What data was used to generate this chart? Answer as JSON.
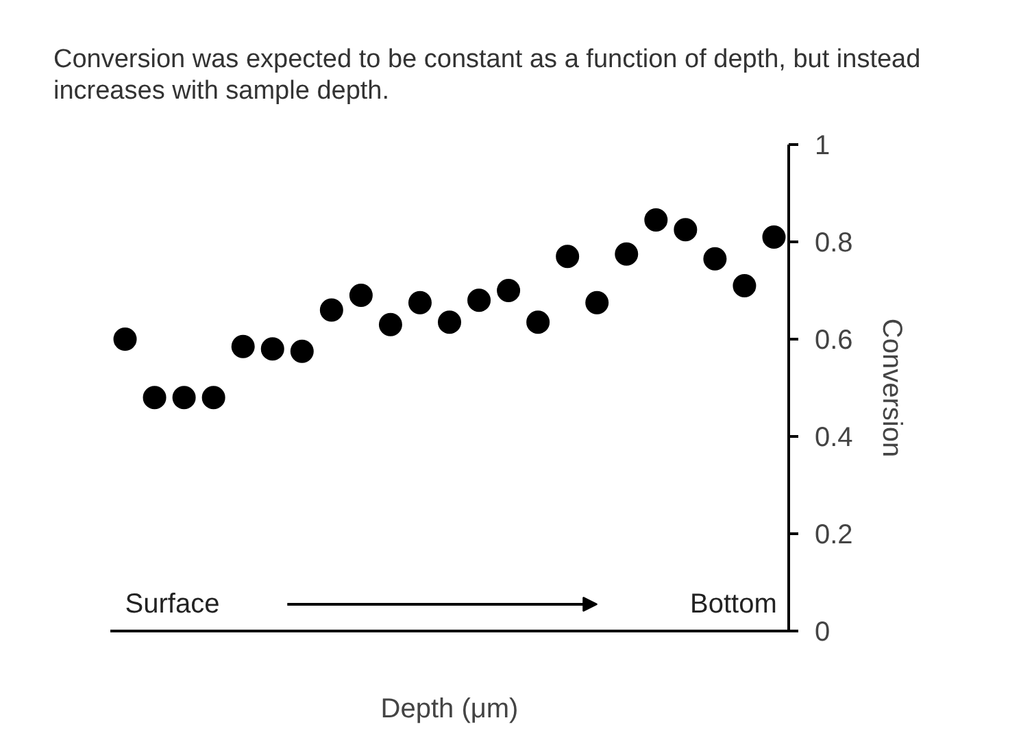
{
  "chart_data": {
    "type": "scatter",
    "title": "Conversion was expected to be constant as a function of depth, but instead increases with sample depth.",
    "xlabel": "Depth (μm)",
    "ylabel": "Conversion",
    "categories": [
      null,
      null,
      null,
      null,
      null,
      null,
      null,
      null,
      null,
      null,
      null,
      null,
      null,
      null,
      null,
      null,
      null,
      null,
      null,
      null,
      null,
      null,
      null
    ],
    "series": [
      {
        "color": "#000000",
        "values": [
          0.6,
          0.48,
          0.48,
          0.48,
          0.585,
          0.58,
          0.575,
          0.66,
          0.69,
          0.63,
          0.675,
          0.635,
          0.68,
          0.7,
          0.635,
          0.77,
          0.675,
          0.775,
          0.845,
          0.825,
          0.765,
          0.71,
          0.81
        ]
      }
    ],
    "ylim": [
      0,
      1
    ],
    "yticks": [
      0,
      0.2,
      0.4,
      0.6,
      0.8,
      1
    ],
    "annotations": [
      "Surface",
      "Bottom"
    ],
    "tick_labels": "y",
    "grid": false,
    "marker": "circle"
  }
}
